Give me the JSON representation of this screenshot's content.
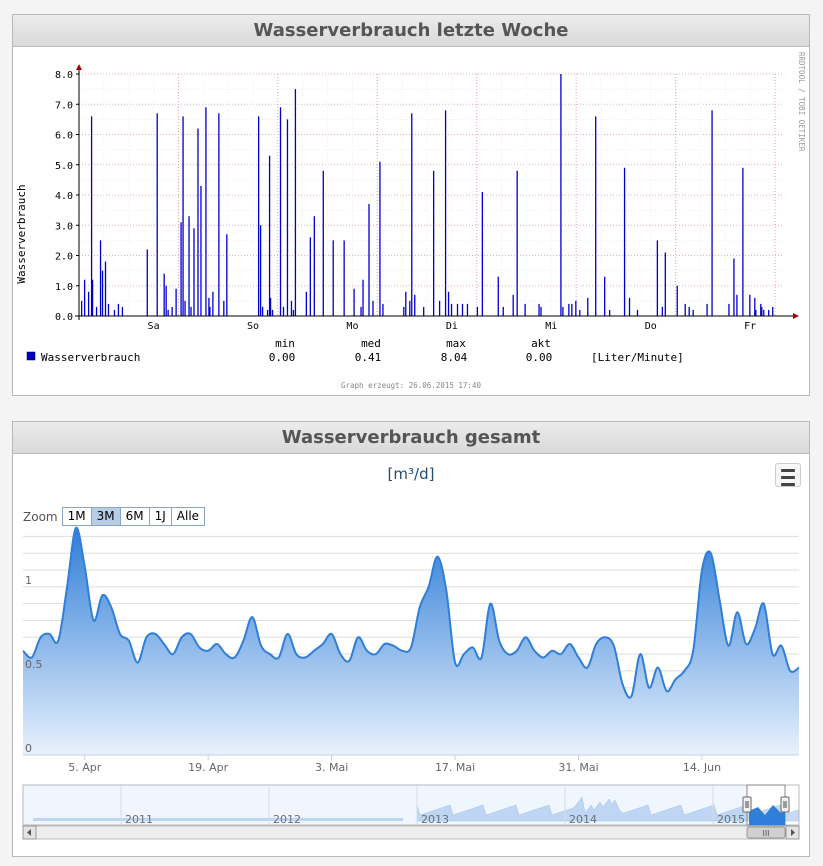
{
  "panel1": {
    "title": "Wasserverbrauch letzte Woche",
    "side_text": "RRDTOOL / TOBI OETIKER",
    "footer": "Graph erzeugt: 26.06.2015  17:40",
    "legend": {
      "headers": [
        "min",
        "med",
        "max",
        "akt"
      ],
      "series_name": "Wasserverbrauch",
      "values": [
        "0.00",
        "0.41",
        "8.04",
        "0.00"
      ],
      "unit": "[Liter/Minute]",
      "color": "#0000cc"
    }
  },
  "panel2": {
    "title": "Wasserverbrauch gesamt",
    "chart_title": "[m³/d]",
    "zoom_label": "Zoom",
    "zoom_buttons": [
      "1M",
      "3M",
      "6M",
      "1J",
      "Alle"
    ],
    "zoom_active": "3M",
    "navigator_years": [
      "2011",
      "2012",
      "2013",
      "2014",
      "2015"
    ],
    "navigator_grip": "III",
    "colors": {
      "line": "#2f7ed8",
      "fill_top": "#3d8de8",
      "fill_bottom": "#e6f0fb"
    }
  },
  "chart_data": [
    {
      "type": "bar",
      "title": "Wasserverbrauch letzte Woche",
      "ylabel": "Wasserverbrauch",
      "ylim": [
        0,
        8
      ],
      "yticks": [
        "0.0",
        "1.0",
        "2.0",
        "3.0",
        "4.0",
        "5.0",
        "6.0",
        "7.0",
        "8.0"
      ],
      "x_labels": [
        "Sa",
        "So",
        "Mo",
        "Di",
        "Mi",
        "Do",
        "Fr"
      ],
      "x_label_positions": [
        0.75,
        1.75,
        2.75,
        3.75,
        4.75,
        5.75,
        6.75
      ],
      "xlim": [
        0,
        7.08
      ],
      "grid": true,
      "series": [
        {
          "name": "Wasserverbrauch",
          "color": "#0000cc",
          "x": [
            0.02,
            0.05,
            0.09,
            0.12,
            0.13,
            0.17,
            0.21,
            0.23,
            0.26,
            0.29,
            0.35,
            0.39,
            0.43,
            0.68,
            0.78,
            0.85,
            0.87,
            0.89,
            0.93,
            0.97,
            1.02,
            1.04,
            1.06,
            1.1,
            1.12,
            1.15,
            1.19,
            1.22,
            1.27,
            1.3,
            1.31,
            1.34,
            1.4,
            1.45,
            1.48,
            1.8,
            1.82,
            1.84,
            1.89,
            1.91,
            1.92,
            1.94,
            2.02,
            2.05,
            2.09,
            2.13,
            2.15,
            2.17,
            2.28,
            2.32,
            2.36,
            2.45,
            2.55,
            2.66,
            2.76,
            2.83,
            2.85,
            2.91,
            2.95,
            3.02,
            3.05,
            3.26,
            3.28,
            3.32,
            3.34,
            3.37,
            3.46,
            3.56,
            3.62,
            3.68,
            3.71,
            3.74,
            3.8,
            3.85,
            3.9,
            4.0,
            4.05,
            4.21,
            4.26,
            4.36,
            4.4,
            4.48,
            4.62,
            4.64,
            4.84,
            4.86,
            4.92,
            4.95,
            4.99,
            5.03,
            5.11,
            5.19,
            5.28,
            5.33,
            5.48,
            5.53,
            5.61,
            5.81,
            5.86,
            5.89,
            6.01,
            6.09,
            6.13,
            6.17,
            6.31,
            6.36,
            6.53,
            6.58,
            6.61,
            6.67,
            6.74,
            6.79,
            6.8,
            6.85,
            6.86,
            6.88,
            6.93,
            6.97
          ],
          "values": [
            0.5,
            1.2,
            0.8,
            6.6,
            1.2,
            0.3,
            2.5,
            1.5,
            1.8,
            0.4,
            0.2,
            0.4,
            0.3,
            2.2,
            6.7,
            1.4,
            1.0,
            0.2,
            0.3,
            0.9,
            3.1,
            6.6,
            0.5,
            3.3,
            0.3,
            2.9,
            6.2,
            4.3,
            6.9,
            0.6,
            0.3,
            0.8,
            6.7,
            0.5,
            2.7,
            6.6,
            3.0,
            0.3,
            0.2,
            5.3,
            0.6,
            0.2,
            6.9,
            0.3,
            6.5,
            0.5,
            0.2,
            7.5,
            0.8,
            2.6,
            3.3,
            4.8,
            2.5,
            2.5,
            0.9,
            0.3,
            1.2,
            3.7,
            0.5,
            5.1,
            0.4,
            0.3,
            0.8,
            0.5,
            6.7,
            0.7,
            0.3,
            4.8,
            0.5,
            6.8,
            0.8,
            0.4,
            0.4,
            0.4,
            0.4,
            0.3,
            4.1,
            1.3,
            0.3,
            0.7,
            4.8,
            0.4,
            0.4,
            0.3,
            8.0,
            0.3,
            0.4,
            0.4,
            0.5,
            0.2,
            0.6,
            6.6,
            1.3,
            0.2,
            4.9,
            0.6,
            0.2,
            2.5,
            0.3,
            2.1,
            1.0,
            0.4,
            0.3,
            0.2,
            0.4,
            6.8,
            0.4,
            1.9,
            0.7,
            4.9,
            0.7,
            0.6,
            0.2,
            0.4,
            0.3,
            0.2,
            0.2,
            0.3
          ]
        }
      ]
    },
    {
      "type": "area",
      "title": "[m³/d]",
      "ylabel": "",
      "ylim": [
        0,
        1.35
      ],
      "yticks": [
        "0",
        "0.5",
        "1"
      ],
      "x_labels": [
        "5. Apr",
        "19. Apr",
        "3. Mai",
        "17. Mai",
        "31. Mai",
        "14. Jun"
      ],
      "x_label_days": [
        7,
        21,
        35,
        49,
        63,
        77
      ],
      "xlim": [
        0,
        88
      ],
      "grid": true,
      "series": [
        {
          "name": "",
          "values": [
            0.62,
            0.58,
            0.7,
            0.72,
            0.68,
            1.0,
            1.35,
            1.12,
            0.8,
            0.95,
            0.88,
            0.72,
            0.68,
            0.55,
            0.7,
            0.72,
            0.66,
            0.6,
            0.7,
            0.72,
            0.64,
            0.62,
            0.66,
            0.6,
            0.58,
            0.68,
            0.82,
            0.65,
            0.6,
            0.58,
            0.72,
            0.6,
            0.58,
            0.62,
            0.66,
            0.72,
            0.6,
            0.56,
            0.7,
            0.62,
            0.6,
            0.66,
            0.65,
            0.62,
            0.64,
            0.88,
            1.0,
            1.18,
            0.98,
            0.55,
            0.6,
            0.64,
            0.58,
            0.9,
            0.68,
            0.6,
            0.62,
            0.7,
            0.62,
            0.58,
            0.62,
            0.6,
            0.66,
            0.58,
            0.52,
            0.66,
            0.7,
            0.65,
            0.42,
            0.35,
            0.6,
            0.4,
            0.52,
            0.38,
            0.45,
            0.5,
            0.62,
            1.1,
            1.2,
            0.92,
            0.65,
            0.85,
            0.66,
            0.75,
            0.9,
            0.6,
            0.65,
            0.5,
            0.52
          ]
        }
      ],
      "navigator": {
        "years": [
          "2011",
          "2012",
          "2013",
          "2014",
          "2015"
        ],
        "selected_range": "last 3 months of 2015"
      }
    }
  ]
}
